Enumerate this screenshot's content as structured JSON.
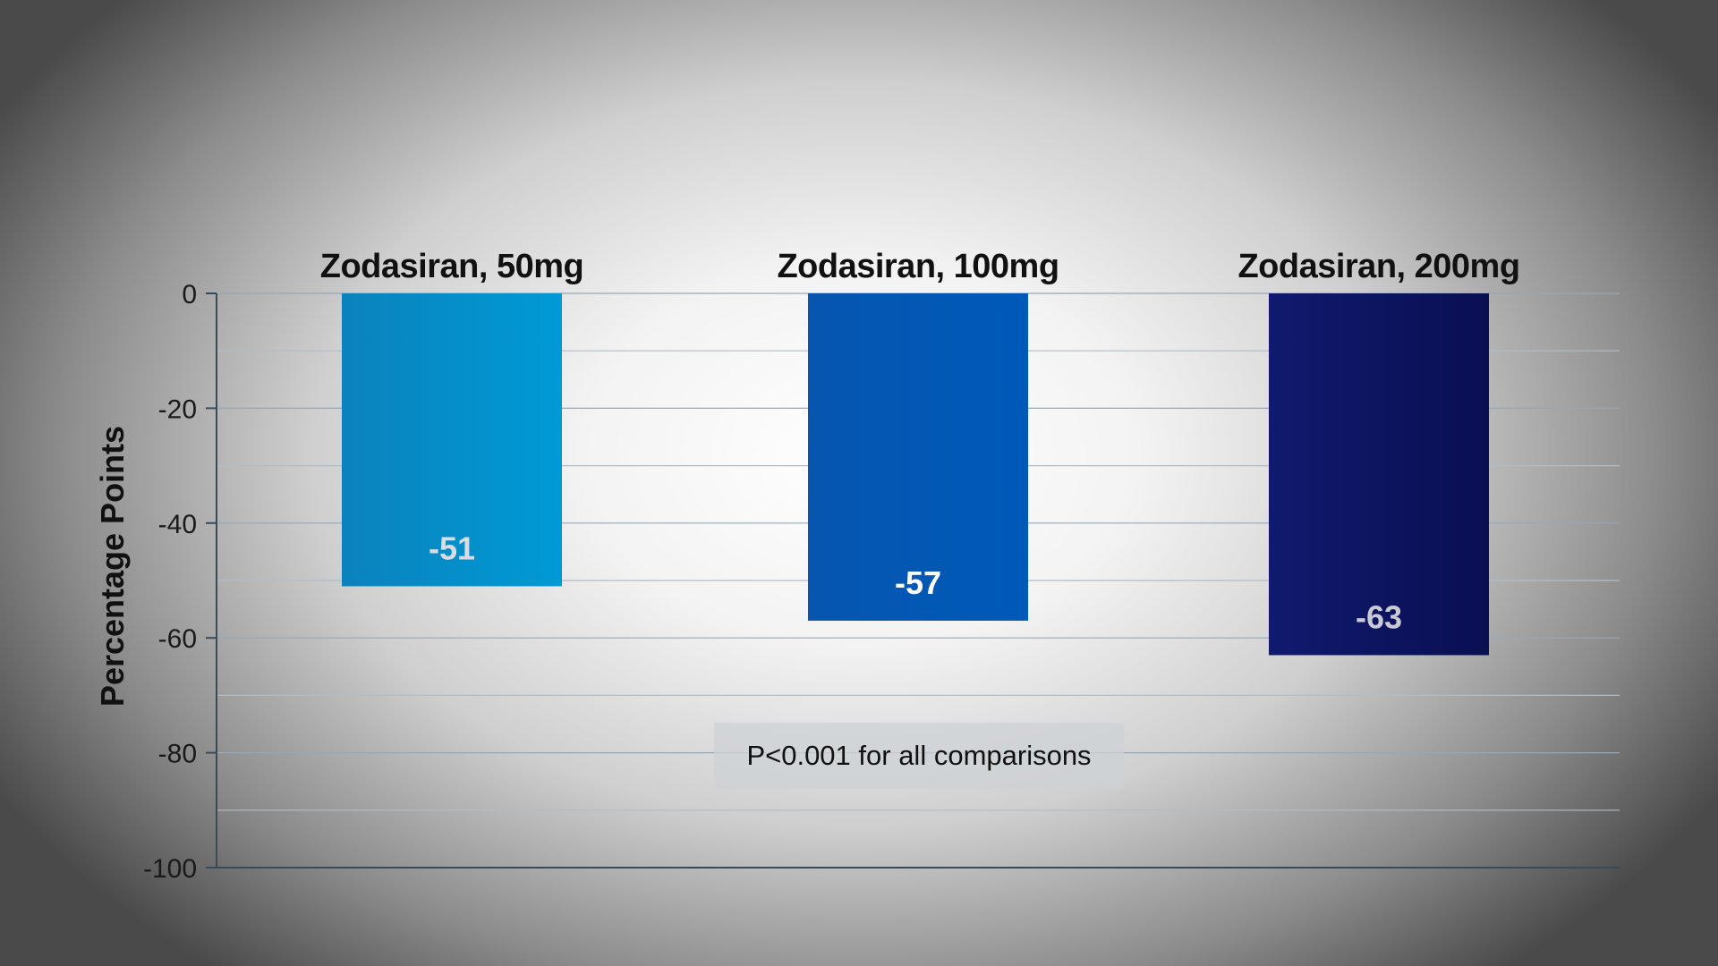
{
  "chart_data": {
    "type": "bar",
    "categories": [
      "Zodasiran, 50mg",
      "Zodasiran, 100mg",
      "Zodasiran, 200mg"
    ],
    "values": [
      -51,
      -57,
      -63
    ],
    "value_labels": [
      "-51",
      "-57",
      "-63"
    ],
    "bar_colors": [
      "#0090cc",
      "#0057b5",
      "#0d1460"
    ],
    "value_label_colors": [
      "#d9dde3",
      "#ffffff",
      "#c8cad6"
    ],
    "ylabel": "Percentage Points",
    "xlabel": "",
    "ylim": [
      -100,
      0
    ],
    "yticks": [
      0,
      -20,
      -40,
      -60,
      -80,
      -100
    ],
    "ytick_labels": [
      "0",
      "-20",
      "-40",
      "-60",
      "-80",
      "-100"
    ],
    "grid": true,
    "category_labels_position": "top",
    "annotation": "P<0.001 for all comparisons"
  }
}
